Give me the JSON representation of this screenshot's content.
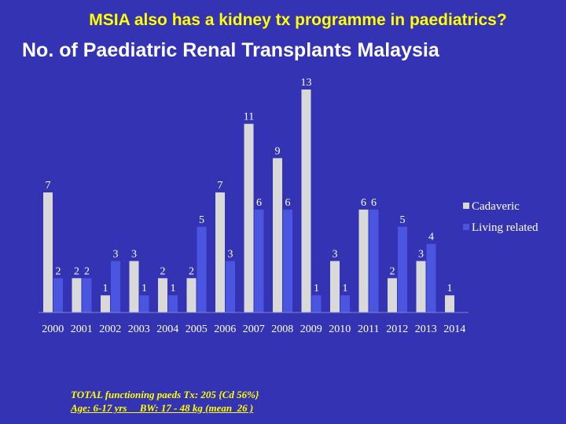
{
  "slide": {
    "heading": "MSIA also has a kidney tx programme in paediatrics?",
    "footnote_line1": "TOTAL functioning paeds Tx: 205 {Cd 56%}",
    "footnote_line2": "Age: 6-17 yrs     BW: 17 - 48 kg (mean  26 )"
  },
  "colors": {
    "background": "#3333b3",
    "cadaveric": "#d9d9d9",
    "living_related": "#4a55e0",
    "heading": "#ffff00",
    "text": "#ffffff"
  },
  "chart_data": {
    "type": "bar",
    "title": "No. of Paediatric Renal Transplants Malaysia",
    "categories": [
      "2000",
      "2001",
      "2002",
      "2003",
      "2004",
      "2005",
      "2006",
      "2007",
      "2008",
      "2009",
      "2010",
      "2011",
      "2012",
      "2013",
      "2014"
    ],
    "series": [
      {
        "name": "Cadaveric",
        "values": [
          7,
          2,
          1,
          3,
          2,
          2,
          7,
          11,
          9,
          13,
          3,
          6,
          2,
          3,
          1
        ]
      },
      {
        "name": "Living related",
        "values": [
          2,
          2,
          3,
          1,
          1,
          5,
          3,
          6,
          6,
          1,
          1,
          6,
          5,
          4,
          null
        ]
      }
    ],
    "ylim": [
      0,
      13
    ],
    "grid": false,
    "legend_position": "right"
  }
}
